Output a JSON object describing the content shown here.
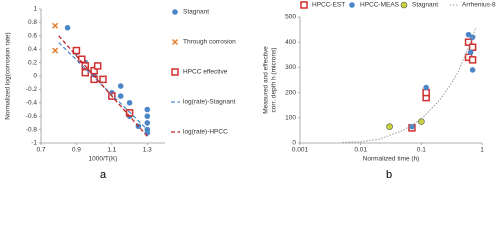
{
  "chart_data": [
    {
      "type": "scatter",
      "panel_label": "a",
      "xlabel": "1000/T(K)",
      "ylabel": "Normalized log(corrosion rate)",
      "xlim": [
        0.7,
        1.4
      ],
      "xticks": [
        0.7,
        0.9,
        1.1,
        1.3
      ],
      "ylim": [
        -1,
        1
      ],
      "yticks": [
        -1,
        -0.8,
        -0.6,
        -0.4,
        -0.2,
        0,
        0.2,
        0.4,
        0.6,
        0.8,
        1
      ],
      "legend": "right",
      "series": [
        {
          "name": "Stagnant",
          "color": "#4a86c8",
          "marker": "circle",
          "x": [
            0.85,
            0.9,
            0.95,
            0.95,
            1.0,
            1.0,
            1.05,
            1.1,
            1.15,
            1.15,
            1.2,
            1.2,
            1.25,
            1.3,
            1.3,
            1.3,
            1.3,
            1.3
          ],
          "values": [
            0.72,
            0.35,
            0.2,
            0.1,
            0.1,
            0.0,
            -0.05,
            -0.25,
            -0.15,
            -0.3,
            -0.4,
            -0.6,
            -0.75,
            -0.5,
            -0.6,
            -0.7,
            -0.8,
            -0.85
          ]
        },
        {
          "name": "Through corrosion",
          "color": "#e07b28",
          "marker": "x",
          "x": [
            0.78,
            0.78
          ],
          "values": [
            0.75,
            0.38
          ]
        },
        {
          "name": "HPCC effective",
          "color": "#d03030",
          "marker": "square",
          "x": [
            0.9,
            0.93,
            0.95,
            0.95,
            1.0,
            1.0,
            1.02,
            1.05,
            1.1,
            1.2
          ],
          "values": [
            0.38,
            0.25,
            0.15,
            0.05,
            0.08,
            -0.05,
            0.15,
            -0.05,
            -0.3,
            -0.55
          ]
        },
        {
          "name": "log(rate)-Stagnant",
          "color": "#4a86c8",
          "marker": "dash",
          "x": [
            0.8,
            1.3
          ],
          "values": [
            0.5,
            -0.8
          ]
        },
        {
          "name": "log(rate)-HPCC",
          "color": "#c02020",
          "marker": "dash",
          "x": [
            0.8,
            1.3
          ],
          "values": [
            0.6,
            -0.9
          ]
        }
      ]
    },
    {
      "type": "scatter",
      "panel_label": "b",
      "xlabel": "Normalized time (h)",
      "ylabel": [
        "Measured and effective",
        "corr. depth h (microns)"
      ],
      "xscale": "log",
      "xlim": [
        0.001,
        1
      ],
      "xticks": [
        0.001,
        0.01,
        0.1,
        1
      ],
      "ylim": [
        0,
        500
      ],
      "yticks": [
        0,
        100,
        200,
        300,
        400,
        500
      ],
      "legend": "top",
      "series": [
        {
          "name": "HPCC-EST",
          "color": "#d03030",
          "marker": "square",
          "x": [
            0.07,
            0.12,
            0.12,
            0.6,
            0.6,
            0.7,
            0.7
          ],
          "values": [
            60,
            180,
            200,
            400,
            340,
            330,
            380
          ]
        },
        {
          "name": "HPCC-MEAS",
          "color": "#4a86c8",
          "marker": "circle",
          "x": [
            0.07,
            0.12,
            0.6,
            0.65,
            0.7,
            0.7
          ],
          "values": [
            65,
            220,
            430,
            360,
            420,
            290
          ]
        },
        {
          "name": "Stagnant",
          "color": "#c8d23c",
          "marker": "circle-outline",
          "x": [
            0.03,
            0.1
          ],
          "values": [
            65,
            85
          ]
        },
        {
          "name": "Arrhenius-8",
          "color": "#999999",
          "marker": "dot-line",
          "x": [
            0.005,
            0.01,
            0.02,
            0.03,
            0.05,
            0.1,
            0.2,
            0.3,
            0.4,
            0.6,
            0.8
          ],
          "values": [
            2,
            5,
            15,
            30,
            50,
            95,
            170,
            230,
            280,
            380,
            460
          ]
        }
      ]
    }
  ]
}
